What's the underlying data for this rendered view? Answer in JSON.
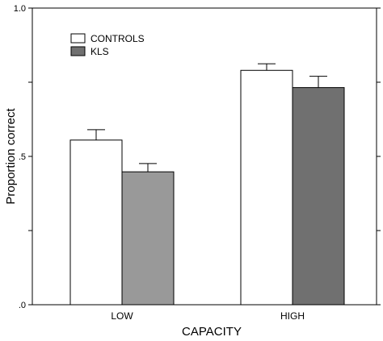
{
  "chart_data": {
    "type": "bar",
    "title": "",
    "xlabel": "CAPACITY",
    "ylabel": "Proportion correct",
    "categories": [
      "LOW",
      "HIGH"
    ],
    "ylim": [
      0,
      1.0
    ],
    "yticks": [
      0,
      0.25,
      0.5,
      0.75,
      1.0
    ],
    "ytick_labels": [
      ".0",
      "",
      ".5",
      "",
      "1.0"
    ],
    "grid": false,
    "legend_position": "top-left",
    "series": [
      {
        "name": "CONTROLS",
        "color": "#ffffff",
        "values": [
          0.555,
          0.79
        ],
        "errors": [
          0.035,
          0.022
        ]
      },
      {
        "name": "KLS",
        "color_low": "#999999",
        "color_high": "#707070",
        "values": [
          0.448,
          0.732
        ],
        "errors": [
          0.028,
          0.038
        ]
      }
    ]
  }
}
